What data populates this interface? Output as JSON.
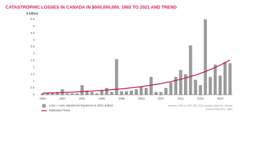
{
  "chart_data": {
    "type": "bar",
    "title": "CATASTROPHIC LOSSES IN CANADA IN $000,000,000, 1983 TO 2021 AND TREND",
    "y_label": "$ billion",
    "categories": [
      "1983",
      null,
      null,
      null,
      "1987",
      null,
      null,
      null,
      "1991",
      null,
      null,
      null,
      "1995",
      null,
      null,
      null,
      "1999",
      null,
      null,
      null,
      "2003",
      null,
      null,
      null,
      "2007",
      null,
      null,
      null,
      "2011",
      null,
      null,
      null,
      "2015",
      null,
      null,
      null,
      "2019",
      null,
      null
    ],
    "series": [
      {
        "name": "Loss + Loss Adjustment Expenses in 2021 dollars",
        "type": "bar",
        "color": "#9b9b9b",
        "values": [
          0.1,
          0.15,
          0.15,
          0.2,
          0.4,
          0.1,
          0.1,
          0.1,
          0.7,
          0.3,
          0.2,
          0.1,
          0.35,
          0.5,
          0.2,
          2.6,
          0.25,
          0.25,
          0.3,
          0.4,
          0.6,
          0.5,
          1.3,
          0.2,
          0.2,
          0.5,
          0.9,
          1.3,
          1.8,
          1.5,
          3.6,
          1.1,
          0.7,
          5.5,
          1.3,
          2.2,
          1.4,
          2.4,
          2.3
        ]
      },
      {
        "name": "Estimated Trend",
        "type": "line",
        "color": "#c4154c",
        "values": [
          0.12,
          0.13,
          0.14,
          0.15,
          0.17,
          0.18,
          0.19,
          0.21,
          0.23,
          0.25,
          0.27,
          0.29,
          0.31,
          0.34,
          0.37,
          0.4,
          0.43,
          0.47,
          0.51,
          0.55,
          0.59,
          0.65,
          0.7,
          0.76,
          0.82,
          0.89,
          0.96,
          1.04,
          1.13,
          1.23,
          1.33,
          1.44,
          1.56,
          1.69,
          1.84,
          1.99,
          2.16,
          2.34,
          2.54
        ]
      }
    ],
    "ylim": [
      0,
      5.5
    ],
    "yticks": [
      0,
      0.5,
      1,
      1.5,
      2,
      2.5,
      3,
      3.5,
      4,
      4.5,
      5,
      5.5
    ],
    "grid": false,
    "sources": [
      "Sources: 1983 to 2007: IBC, PCS Canada, Swiss Re, Deloitte",
      "Source 2008-2021: CatIQ"
    ]
  }
}
